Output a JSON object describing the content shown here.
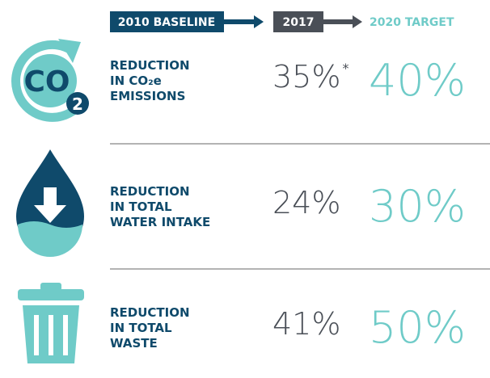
{
  "header": {
    "baseline": "2010 BASELINE",
    "current": "2017",
    "target": "2020 TARGET"
  },
  "icon_text": [
    "CO",
    "2"
  ],
  "rows": [
    {
      "label_lines": [
        "REDUCTION",
        "IN CO₂e",
        "EMISSIONS"
      ],
      "current": "35%",
      "note": "*",
      "target": "40%"
    },
    {
      "label_lines": [
        "REDUCTION",
        "IN TOTAL",
        "WATER INTAKE"
      ],
      "current": "24%",
      "target": "30%"
    },
    {
      "label_lines": [
        "REDUCTION",
        "IN TOTAL",
        "WASTE"
      ],
      "current": "41%",
      "target": "50%"
    }
  ]
}
